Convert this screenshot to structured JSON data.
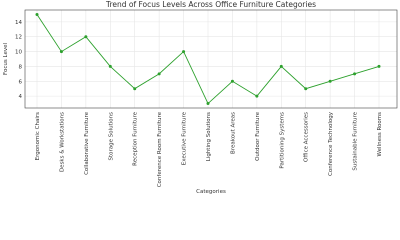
{
  "chart_data": {
    "type": "line",
    "title": "Trend of Focus Levels Across Office Furniture Categories",
    "x_label": "Categories",
    "y_label": "Focus Level",
    "categories": [
      "Ergonomic Chairs",
      "Desks & Workstations",
      "Collaborative Furniture",
      "Storage Solutions",
      "Reception Furniture",
      "Conference Room Furniture",
      "Executive Furniture",
      "Lighting Solutions",
      "Breakout Areas",
      "Outdoor Furniture",
      "Partitioning Systems",
      "Office Accessories",
      "Conference Technology",
      "Sustainable Furniture",
      "Wellness Rooms"
    ],
    "values": [
      15,
      10,
      12,
      8,
      5,
      7,
      10,
      3,
      6,
      4,
      8,
      5,
      6,
      7,
      8
    ],
    "color": "#2ca02c",
    "ylim": [
      2.4,
      15.6
    ],
    "yticks": [
      4,
      6,
      8,
      10,
      12,
      14
    ],
    "grid": true
  }
}
